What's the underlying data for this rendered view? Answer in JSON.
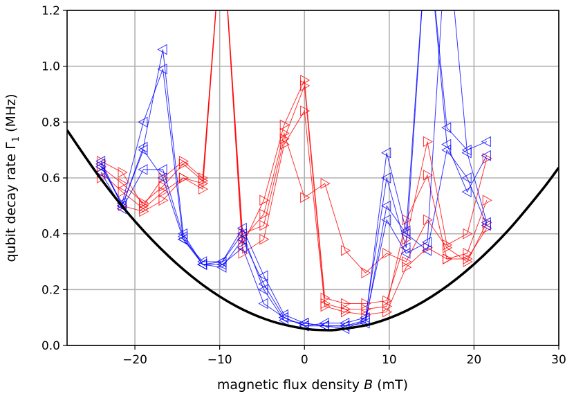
{
  "chart_data": {
    "type": "line",
    "xlabel": {
      "main": "magnetic flux density ",
      "var": "B",
      "unit": " (mT)"
    },
    "ylabel": {
      "main": "qubit decay rate Γ",
      "sub": "1",
      "unit": " (MHz)"
    },
    "xlim": [
      -28,
      30
    ],
    "ylim": [
      0,
      1.2
    ],
    "xticks": [
      -20,
      -10,
      0,
      10,
      20,
      30
    ],
    "xtick_labels": [
      "−20",
      "−10",
      "0",
      "10",
      "20",
      "30"
    ],
    "yticks": [
      0,
      0.2,
      0.4,
      0.6,
      0.8,
      1.0,
      1.2
    ],
    "ytick_labels": [
      "0.0",
      "0.2",
      "0.4",
      "0.6",
      "0.8",
      "1.0",
      "1.2"
    ],
    "grid": true,
    "colors": {
      "blue": "#0000ff",
      "red": "#ff0000",
      "curve": "#000000",
      "grid": "#b0b0b0"
    },
    "x": [
      -24,
      -21.5,
      -19,
      -16.7,
      -14.3,
      -12,
      -9.7,
      -7.3,
      -4.8,
      -2.4,
      0,
      2.4,
      4.8,
      7.2,
      9.7,
      12,
      14.5,
      16.8,
      19.2,
      21.5
    ],
    "blue_series": [
      {
        "marker": "triangle-left",
        "values": [
          0.66,
          0.5,
          0.71,
          1.06,
          0.4,
          0.29,
          0.3,
          0.42,
          0.25,
          0.11,
          0.08,
          0.07,
          0.07,
          0.09,
          0.69,
          0.41,
          1.5,
          0.78,
          0.7,
          0.73
        ]
      },
      {
        "marker": "triangle-left",
        "values": [
          0.64,
          0.51,
          0.8,
          0.99,
          0.38,
          0.29,
          0.28,
          0.38,
          0.22,
          0.1,
          0.07,
          0.08,
          0.08,
          0.1,
          0.6,
          0.35,
          1.5,
          0.72,
          0.55,
          0.68
        ]
      },
      {
        "marker": "triangle-left",
        "values": [
          0.62,
          0.49,
          0.63,
          0.63,
          0.39,
          0.29,
          0.29,
          0.35,
          0.15,
          0.1,
          0.07,
          0.07,
          0.07,
          0.08,
          0.5,
          0.4,
          0.34,
          0.7,
          0.6,
          0.43
        ]
      },
      {
        "marker": "triangle-left",
        "values": [
          0.65,
          0.5,
          0.7,
          0.6,
          0.38,
          0.3,
          0.3,
          0.4,
          0.2,
          0.09,
          0.08,
          0.07,
          0.06,
          0.09,
          0.45,
          0.33,
          0.37,
          1.5,
          0.69,
          0.44
        ]
      }
    ],
    "red_series": [
      {
        "marker": "triangle-right",
        "values": [
          0.66,
          0.62,
          0.5,
          0.6,
          0.66,
          0.6,
          1.5,
          0.36,
          0.52,
          0.79,
          0.95,
          0.17,
          0.15,
          0.15,
          0.16,
          0.38,
          0.73,
          0.36,
          0.4,
          0.67
        ]
      },
      {
        "marker": "triangle-right",
        "values": [
          0.62,
          0.55,
          0.49,
          0.55,
          0.6,
          0.58,
          1.5,
          0.4,
          0.43,
          0.74,
          0.93,
          0.15,
          0.13,
          0.13,
          0.14,
          0.45,
          0.61,
          0.31,
          0.33,
          0.52
        ]
      },
      {
        "marker": "triangle-right",
        "values": [
          0.64,
          0.58,
          0.51,
          0.57,
          0.65,
          0.59,
          1.5,
          0.38,
          0.47,
          0.76,
          0.53,
          0.58,
          0.34,
          0.26,
          0.33,
          0.3,
          0.45,
          0.35,
          0.3,
          0.44
        ]
      },
      {
        "marker": "triangle-right",
        "values": [
          0.6,
          0.5,
          0.48,
          0.52,
          0.6,
          0.56,
          1.5,
          0.33,
          0.38,
          0.72,
          0.84,
          0.14,
          0.12,
          0.11,
          0.12,
          0.28,
          0.35,
          0.31,
          0.31,
          0.42
        ]
      }
    ],
    "curve": {
      "x": [
        -28,
        -24,
        -20,
        -16,
        -12,
        -8,
        -4,
        0,
        2.5,
        4,
        8,
        12,
        16,
        20,
        24,
        28,
        30
      ],
      "y": [
        0.771,
        0.596,
        0.445,
        0.319,
        0.217,
        0.14,
        0.088,
        0.06,
        0.055,
        0.057,
        0.078,
        0.124,
        0.195,
        0.291,
        0.411,
        0.556,
        0.637
      ]
    }
  }
}
